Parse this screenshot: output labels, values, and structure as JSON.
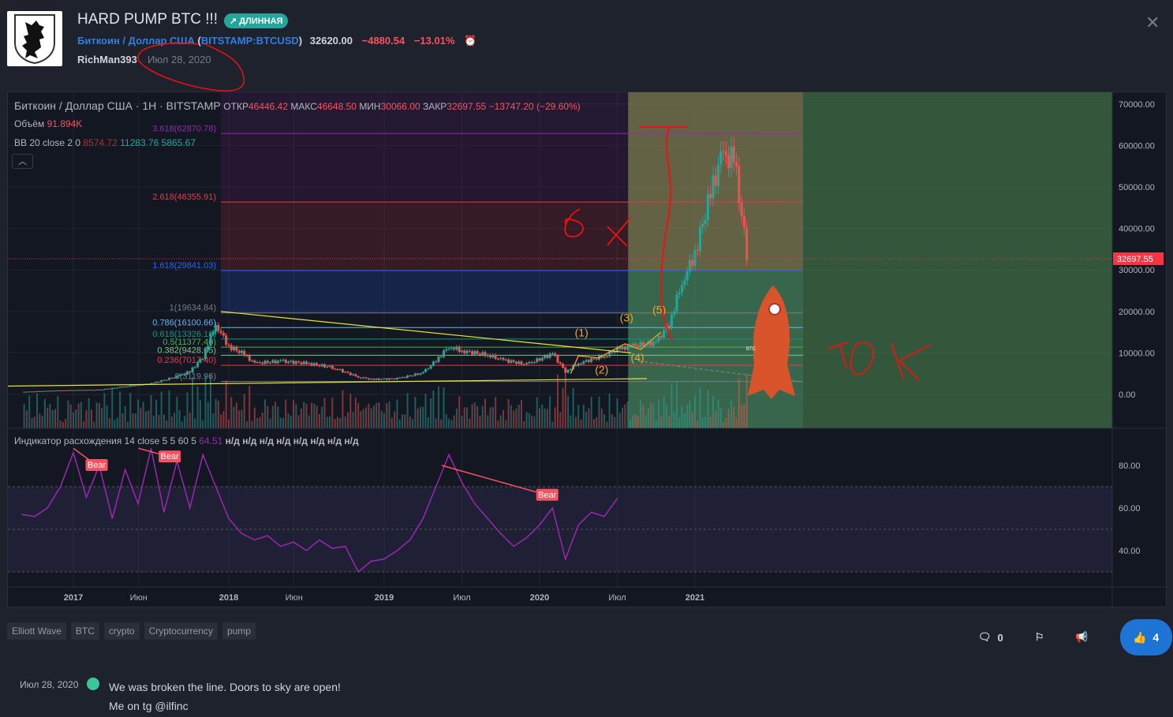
{
  "header": {
    "title": "HARD PUMP BTC !!!",
    "badge": "↗ ДЛИННАЯ",
    "symbol_name": "Биткоин / Доллар США",
    "symbol_open": "(",
    "symbol_ticker": "BITSTAMP:BTCUSD",
    "symbol_close": ")",
    "price": "32620.00",
    "change": "−4880.54",
    "change_pct": "−13.01%",
    "author": "RichMan393",
    "date": "Июл 28, 2020",
    "icons": {
      "close": "close-icon",
      "alarm": "alarm-clock-icon",
      "avatar": "lion-crest-logo"
    }
  },
  "legend": {
    "title": "Биткоин / Доллар США · 1H · BITSTAMP",
    "open_label": "ОТКР",
    "open": "46446.42",
    "high_label": "МАКС",
    "high": "46648.50",
    "low_label": "МИН",
    "low": "30066.00",
    "close_label": "ЗАКР",
    "close": "32697.55",
    "change": "−13747.20 (−29.60%)",
    "volume_label": "Объём",
    "volume": "91.894K",
    "bb_label": "BB 20 close 2 0",
    "bb_basis": "8574.72",
    "bb_upper": "11283.76",
    "bb_lower": "5865.67",
    "osc_label": "Индикатор расхождения 14 close 5 5 60 5",
    "osc_value": "64.51",
    "osc_na": "н/д н/д н/д н/д н/д н/д н/д н/д"
  },
  "chart_data": [
    {
      "type": "candlestick",
      "title": "Биткоин / Доллар США · 1H · BITSTAMP",
      "y_ticks": [
        "0.00",
        "10000.00",
        "20000.00",
        "30000.00",
        "40000.00",
        "50000.00",
        "60000.00",
        "70000.00"
      ],
      "ylim": [
        -2000,
        72000
      ],
      "x_ticks": [
        "2017",
        "Июн",
        "2018",
        "Июн",
        "2019",
        "Июл",
        "2020",
        "Июл",
        "2021"
      ],
      "last_price_label": "32697.55",
      "series": [
        {
          "x": [
            "2016-09",
            "2016-12",
            "2017-03",
            "2017-05",
            "2017-07",
            "2017-09",
            "2017-10",
            "2017-11",
            "2017-12",
            "2018-01",
            "2018-02",
            "2018-03",
            "2018-05",
            "2018-07",
            "2018-09",
            "2018-11",
            "2018-12",
            "2019-02",
            "2019-04",
            "2019-05",
            "2019-06",
            "2019-07",
            "2019-09",
            "2019-10",
            "2019-12",
            "2020-02",
            "2020-03",
            "2020-04",
            "2020-06",
            "2020-07",
            "2020-08",
            "2020-10",
            "2020-11",
            "2020-12",
            "2021-01",
            "2021-02",
            "2021-03",
            "2021-04",
            "2021-05"
          ],
          "values": [
            600,
            950,
            1100,
            1900,
            2600,
            4300,
            5500,
            9000,
            17000,
            11500,
            10000,
            7500,
            8000,
            7500,
            6500,
            4200,
            3600,
            3800,
            5200,
            8200,
            11500,
            10500,
            9500,
            8400,
            7200,
            9800,
            5500,
            7500,
            9300,
            10800,
            11600,
            12500,
            17000,
            27000,
            34000,
            46000,
            57000,
            57000,
            34000
          ]
        }
      ],
      "fib_levels": [
        {
          "label": "3.618(62870.78)",
          "value": 62870.78,
          "color": "#9c27b0"
        },
        {
          "label": "2.618(46355.91)",
          "value": 46355.91,
          "color": "#f23645"
        },
        {
          "label": "1.618(29841.03)",
          "value": 29841.03,
          "color": "#2962ff"
        },
        {
          "label": "1(19634.84)",
          "value": 19634.84,
          "color": "#787b86"
        },
        {
          "label": "0.786(16100.66)",
          "value": 16100.66,
          "color": "#64b5f6"
        },
        {
          "label": "0.618(13326.16)",
          "value": 13326.16,
          "color": "#089981"
        },
        {
          "label": "0.5(11377.40)",
          "value": 11377.4,
          "color": "#4caf50"
        },
        {
          "label": "0.382(9428.65)",
          "value": 9428.65,
          "color": "#81c784"
        },
        {
          "label": "0.236(7017.40)",
          "value": 7017.4,
          "color": "#f23645"
        },
        {
          "label": "0(3119.96)",
          "value": 3119.96,
          "color": "#787b86"
        }
      ],
      "wave_labels": [
        "(1)",
        "(2)",
        "(3)",
        "(4)",
        "(5)"
      ],
      "annotations": [
        "6 x",
        "10K",
        "BTC"
      ]
    },
    {
      "type": "line",
      "y_ticks": [
        "40.00",
        "60.00",
        "80.00"
      ],
      "ylim": [
        25,
        92
      ],
      "bands": [
        30,
        50,
        70
      ],
      "x": [
        "2016-09",
        "2016-10",
        "2016-11",
        "2016-12",
        "2017-01",
        "2017-02",
        "2017-03",
        "2017-04",
        "2017-05",
        "2017-06",
        "2017-07",
        "2017-08",
        "2017-09",
        "2017-10",
        "2017-11",
        "2017-12",
        "2018-01",
        "2018-02",
        "2018-03",
        "2018-04",
        "2018-05",
        "2018-06",
        "2018-07",
        "2018-08",
        "2018-09",
        "2018-10",
        "2018-11",
        "2018-12",
        "2019-01",
        "2019-02",
        "2019-03",
        "2019-04",
        "2019-05",
        "2019-06",
        "2019-07",
        "2019-08",
        "2019-09",
        "2019-10",
        "2019-11",
        "2019-12",
        "2020-01",
        "2020-02",
        "2020-03",
        "2020-04",
        "2020-05",
        "2020-06",
        "2020-07"
      ],
      "values": [
        57,
        56,
        60,
        70,
        86,
        65,
        80,
        55,
        78,
        62,
        88,
        58,
        82,
        60,
        85,
        70,
        55,
        48,
        45,
        47,
        42,
        44,
        40,
        45,
        41,
        42,
        30,
        35,
        36,
        40,
        45,
        55,
        70,
        85,
        72,
        62,
        55,
        48,
        42,
        46,
        52,
        60,
        36,
        52,
        58,
        56,
        64.51
      ],
      "divergence_labels": [
        "Bear",
        "Bear",
        "Bear"
      ]
    }
  ],
  "tags": [
    "Elliott Wave",
    "BTC",
    "crypto",
    "Cryptocurrency",
    "pump"
  ],
  "actions": {
    "comments": "0",
    "likes": "4"
  },
  "comment": {
    "date": "Июл 28, 2020",
    "line1": "We was broken the line. Doors to sky are open!",
    "line2": "Me on tg @ilfinc"
  }
}
